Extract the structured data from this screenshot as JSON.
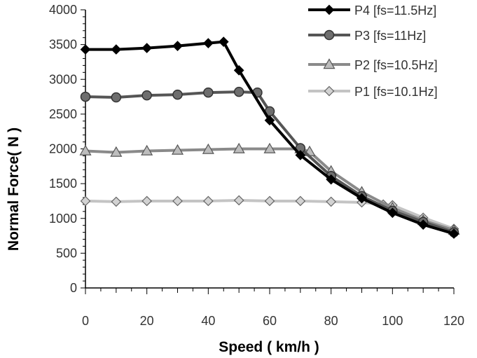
{
  "chart_data": {
    "type": "line",
    "xlabel": "Speed ( km/h )",
    "ylabel": "Normal  Force( N )",
    "xlim": [
      0,
      120
    ],
    "ylim": [
      0,
      4000
    ],
    "x_ticks": [
      0,
      20,
      40,
      60,
      80,
      100,
      120
    ],
    "y_ticks": [
      0,
      500,
      1000,
      1500,
      2000,
      2500,
      3000,
      3500,
      4000
    ],
    "grid": false,
    "legend_position": "top-right",
    "series": [
      {
        "name": "P4 [fs=11.5Hz]",
        "color": "#000000",
        "marker": "diamond",
        "marker_fill": "#000000",
        "x": [
          0,
          10,
          20,
          30,
          40,
          45,
          50,
          60,
          70,
          80,
          90,
          100,
          110,
          120
        ],
        "y": [
          3430,
          3430,
          3450,
          3480,
          3520,
          3540,
          3130,
          2410,
          1910,
          1560,
          1290,
          1080,
          910,
          780
        ]
      },
      {
        "name": "P3 [fs=11Hz]",
        "color": "#555555",
        "marker": "circle",
        "marker_fill": "#6e6e6e",
        "x": [
          0,
          10,
          20,
          30,
          40,
          50,
          56,
          60,
          70,
          80,
          90,
          100,
          110,
          120
        ],
        "y": [
          2750,
          2740,
          2770,
          2780,
          2810,
          2820,
          2810,
          2540,
          2010,
          1610,
          1320,
          1110,
          950,
          800
        ]
      },
      {
        "name": "P2 [fs=10.5Hz]",
        "color": "#8a8a8a",
        "marker": "triangle",
        "marker_fill": "#bdbdbd",
        "x": [
          0,
          10,
          20,
          30,
          40,
          50,
          60,
          70,
          73,
          80,
          90,
          100,
          110,
          120
        ],
        "y": [
          1970,
          1950,
          1970,
          1980,
          1990,
          2000,
          2000,
          2000,
          1960,
          1680,
          1380,
          1150,
          970,
          830
        ]
      },
      {
        "name": "P1 [fs=10.1Hz]",
        "color": "#c4c4c4",
        "marker": "diamond",
        "marker_fill": "#d2d2d2",
        "x": [
          0,
          10,
          20,
          30,
          40,
          50,
          60,
          70,
          80,
          90,
          97,
          100,
          110,
          120
        ],
        "y": [
          1250,
          1240,
          1250,
          1250,
          1250,
          1260,
          1250,
          1250,
          1240,
          1230,
          1200,
          1190,
          1010,
          850
        ]
      }
    ]
  }
}
